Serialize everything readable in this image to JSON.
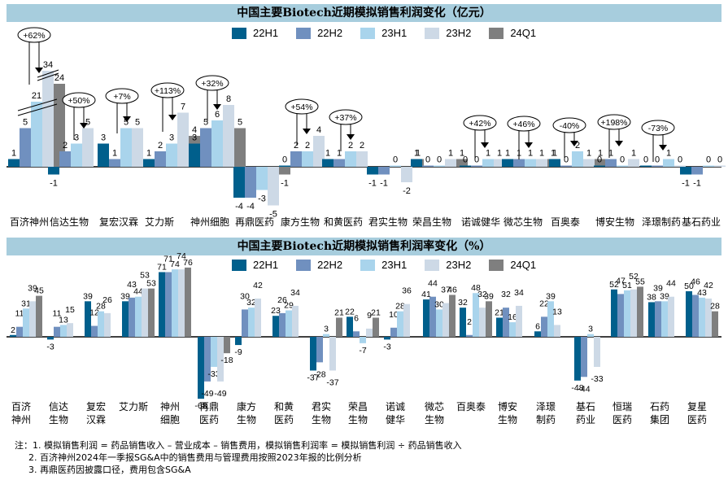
{
  "colors": {
    "22H1": "#005f8c",
    "22H2": "#7090bf",
    "23H1": "#a9d4ec",
    "23H2": "#cdd9e6",
    "24Q1": "#7f7f7f",
    "title_bg": "#a7cddd"
  },
  "chart_data": [
    {
      "type": "bar",
      "title": "中国主要Biotech近期模拟销售利润变化（亿元）",
      "xlabel": "",
      "ylabel": "",
      "grid": false,
      "legend_position": "top-center",
      "series_names": [
        "22H1",
        "22H2",
        "23H1",
        "23H2",
        "24Q1"
      ],
      "categories": [
        "百济神州",
        "信达生物",
        "复宏汉霖",
        "艾力斯",
        "神州细胞",
        "再鼎医药",
        "康方生物",
        "和黄医药",
        "君实生物",
        "荣昌生物",
        "诺诚健华",
        "微芯生物",
        "百奥泰",
        "博安生物",
        "泽璟制药",
        "基石药业"
      ],
      "series": [
        {
          "name": "22H1",
          "values": [
            1,
            -1,
            3,
            1,
            3,
            -4,
            0,
            1,
            -1,
            1,
            0,
            1,
            1,
            0,
            0,
            -1
          ]
        },
        {
          "name": "22H2",
          "values": [
            5,
            2,
            1,
            2,
            5,
            -4,
            2,
            1,
            -1,
            0,
            0,
            1,
            0,
            1,
            0,
            -1
          ]
        },
        {
          "name": "23H1",
          "values": [
            21,
            3,
            5,
            3,
            6,
            -3,
            2,
            2,
            0,
            0,
            1,
            1,
            2,
            0,
            1,
            0
          ]
        },
        {
          "name": "23H2",
          "values": [
            34,
            5,
            5,
            7,
            8,
            -5,
            4,
            2,
            -2,
            1,
            1,
            1,
            1,
            1,
            0,
            0
          ]
        },
        {
          "name": "24Q1",
          "values": [
            24,
            null,
            null,
            4,
            5,
            -1,
            null,
            null,
            1,
            1,
            null,
            1,
            1,
            null,
            null,
            null
          ]
        }
      ],
      "annotations": [
        {
          "category": "百济神州",
          "text": "+62%"
        },
        {
          "category": "信达生物",
          "text": "+50%"
        },
        {
          "category": "复宏汉霖",
          "text": "+7%"
        },
        {
          "category": "艾力斯",
          "text": "+113%"
        },
        {
          "category": "神州细胞",
          "text": "+32%"
        },
        {
          "category": "康方生物",
          "text": "+54%"
        },
        {
          "category": "和黄医药",
          "text": "+37%"
        },
        {
          "category": "诺诚健华",
          "text": "+42%"
        },
        {
          "category": "微芯生物",
          "text": "+46%"
        },
        {
          "category": "百奥泰",
          "text": "-40%"
        },
        {
          "category": "博安生物",
          "text": "+198%"
        },
        {
          "category": "泽璟制药",
          "text": "-73%"
        }
      ],
      "axis_break": {
        "category": "百济神州",
        "note": "broken axis on large bars"
      },
      "ylim": [
        -5,
        34
      ]
    },
    {
      "type": "bar",
      "title": "中国主要Biotech近期模拟销售利润率变化（%）",
      "xlabel": "",
      "ylabel": "",
      "grid": false,
      "legend_position": "top-center",
      "series_names": [
        "22H1",
        "22H2",
        "23H1",
        "23H2",
        "24Q1"
      ],
      "categories": [
        "百济\n神州",
        "信达\n生物",
        "复宏\n汉霖",
        "艾力斯",
        "神州\n细胞",
        "再鼎\n医药",
        "康方\n生物",
        "和黄\n医药",
        "君实\n生物",
        "荣昌\n生物",
        "诺诚\n健华",
        "微芯\n生物",
        "百奥泰",
        "博安\n生物",
        "泽璟\n制药",
        "基石\n药业",
        "恒瑞\n医药",
        "石药\n集团",
        "复星\n医药"
      ],
      "series": [
        {
          "name": "22H1",
          "values": [
            2,
            -3,
            39,
            39,
            71,
            -68,
            -9,
            23,
            -37,
            22,
            -3,
            41,
            32,
            21,
            6,
            -48,
            52,
            38,
            50
          ]
        },
        {
          "name": "22H2",
          "values": [
            11,
            11,
            12,
            43,
            71,
            -49,
            30,
            26,
            -28,
            6,
            10,
            44,
            2,
            32,
            22,
            -44,
            47,
            39,
            46
          ]
        },
        {
          "name": "23H1",
          "values": [
            31,
            13,
            28,
            44,
            74,
            -33,
            32,
            29,
            3,
            -7,
            28,
            30,
            48,
            16,
            39,
            3,
            51,
            39,
            43
          ]
        },
        {
          "name": "23H2",
          "values": [
            39,
            15,
            26,
            53,
            74,
            -49,
            42,
            34,
            -37,
            9,
            36,
            37,
            32,
            34,
            13,
            -33,
            52,
            44,
            42
          ]
        },
        {
          "name": "24Q1",
          "values": [
            45,
            null,
            null,
            53,
            76,
            -18,
            null,
            null,
            21,
            21,
            null,
            46,
            39,
            null,
            null,
            null,
            55,
            null,
            28
          ]
        }
      ],
      "ylim": [
        -70,
        80
      ]
    }
  ],
  "charts": {
    "top": {
      "title": "中国主要Biotech近期模拟销售利润变化（亿元）"
    },
    "bottom": {
      "title": "中国主要Biotech近期模拟销售利润率变化（%）"
    }
  },
  "legend": [
    "22H1",
    "22H2",
    "23H1",
    "23H2",
    "24Q1"
  ],
  "notes": {
    "line1": "注：1. 模拟销售利润 = 药品销售收入 – 营业成本 – 销售费用，模拟销售利润率 = 模拟销售利润 ÷ 药品销售收入",
    "line2": "2. 百济神州2024年一季报SG&A中的销售费用与管理费用按照2023年报的比例分析",
    "line3": "3. 再鼎医药因披露口径，费用包含SG&A"
  }
}
